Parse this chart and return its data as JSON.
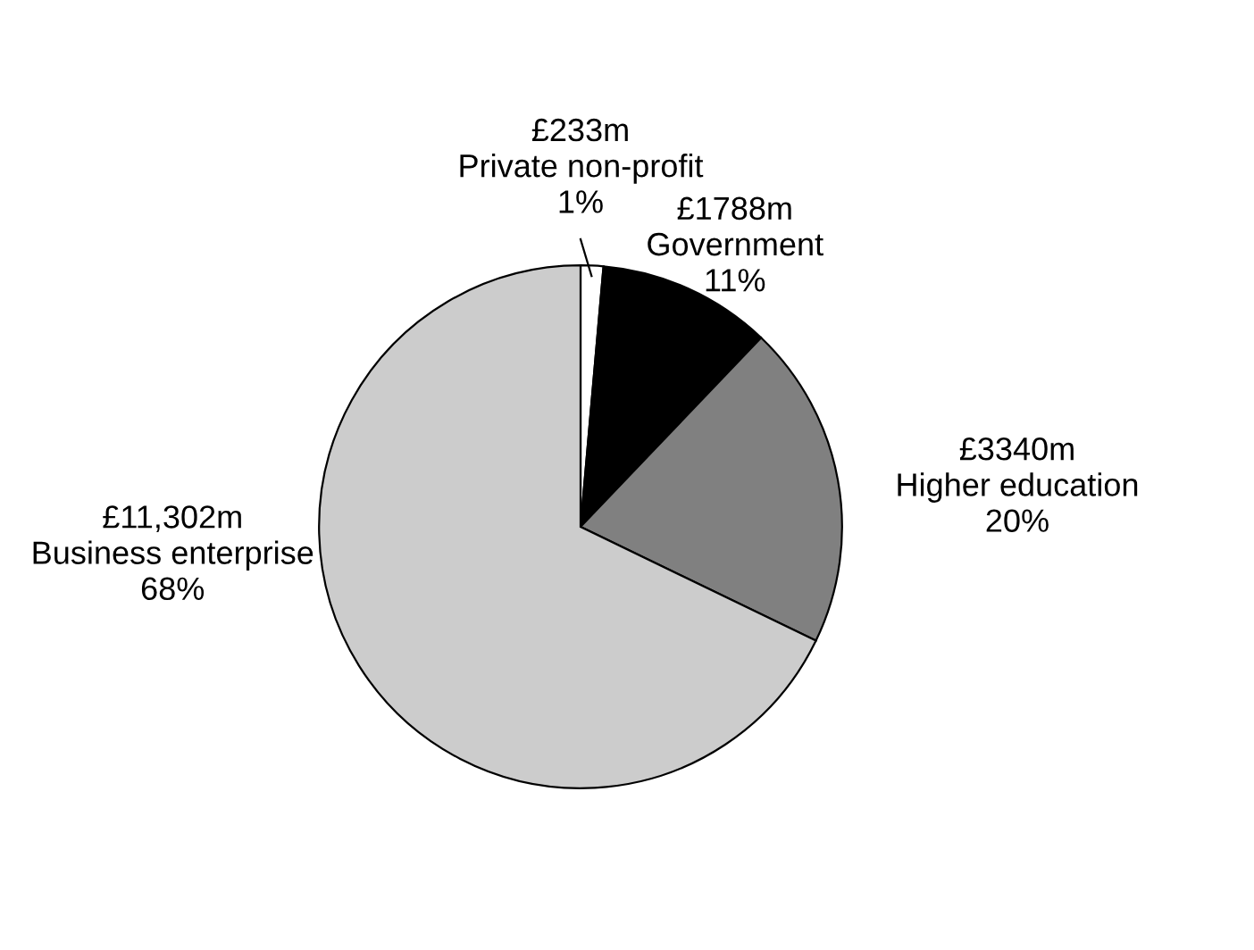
{
  "chart_data": {
    "type": "pie",
    "categories": [
      "Private non-profit",
      "Government",
      "Higher education",
      "Business enterprise"
    ],
    "values": [
      233,
      1788,
      3340,
      11302
    ],
    "colors": [
      "#ffffff",
      "#000000",
      "#808080",
      "#cccccc"
    ],
    "value_labels": [
      "£233m",
      "£1788m",
      "£3340m",
      "£11,302m"
    ],
    "annotations": [
      "1%",
      "11%",
      "20%",
      "68%"
    ]
  }
}
